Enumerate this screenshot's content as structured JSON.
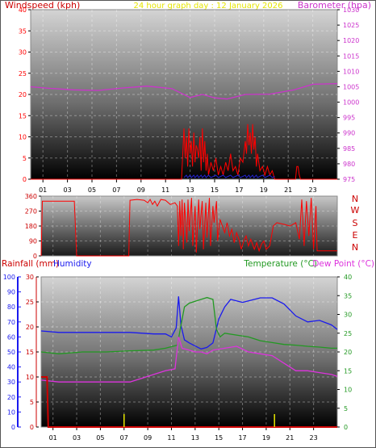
{
  "header": {
    "windspeed_label": "Windspeed (kph)",
    "subtitle": "24 hour graph day : 12 January 2026",
    "barometer_label": "Barometer (hpa)"
  },
  "colors": {
    "windspeed": "#ff0000",
    "gust_floor": "#2222cc",
    "barometer": "#cc33cc",
    "direction": "#ff0000",
    "humidity": "#1a1aee",
    "temperature": "#229922",
    "dew_point": "#dd33dd",
    "rainfall": "#cc0000",
    "subtitle": "#e6e600",
    "frame": "#000000"
  },
  "panel3_header": {
    "rainfall_label": "Rainfall (mm)",
    "humidity_label": "Humidity",
    "temperature_label": "Temperature (°C)",
    "dewpoint_label": "Dew Point (°C)"
  },
  "chart_data": [
    {
      "type": "line",
      "title": "24 hour graph day : 12 January 2026",
      "xlabel": "",
      "ylabel": "Windspeed (kph)",
      "y2label": "Barometer (hpa)",
      "xticks": [
        "01",
        "03",
        "05",
        "07",
        "09",
        "11",
        "13",
        "15",
        "17",
        "19",
        "21",
        "23"
      ],
      "xlim": [
        -0.5,
        24.5
      ],
      "ylim": [
        0,
        40
      ],
      "yticks": [
        0,
        5,
        10,
        15,
        20,
        25,
        30,
        35,
        40
      ],
      "y2lim": [
        975,
        1030
      ],
      "y2ticks": [
        975,
        980,
        985,
        990,
        995,
        1000,
        1005,
        1010,
        1015,
        1020,
        1025,
        1030
      ],
      "grid": true,
      "series": [
        {
          "name": "Barometer (hpa)",
          "axis": "right",
          "x": [
            -0.5,
            1,
            3,
            5,
            7,
            9,
            11,
            12.5,
            13.5,
            14.5,
            15.5,
            17,
            19,
            21,
            22.5,
            24.5
          ],
          "values": [
            1005.0,
            1004.5,
            1004.0,
            1003.8,
            1004.6,
            1005.2,
            1004.4,
            1001.5,
            1002.5,
            1001.4,
            1001.0,
            1002.5,
            1002.6,
            1004.0,
            1005.8,
            1006.0
          ]
        },
        {
          "name": "Windspeed (kph)",
          "axis": "left",
          "x": [
            -0.5,
            11.8,
            12.0,
            12.1,
            12.2,
            12.3,
            12.4,
            12.5,
            12.6,
            12.7,
            12.8,
            12.9,
            13.0,
            13.1,
            13.2,
            13.3,
            13.4,
            13.5,
            13.6,
            13.7,
            13.8,
            13.9,
            14.0,
            14.2,
            14.4,
            14.6,
            14.8,
            15.0,
            15.2,
            15.4,
            15.6,
            15.8,
            16.0,
            16.2,
            16.4,
            16.6,
            16.8,
            17.0,
            17.1,
            17.2,
            17.3,
            17.4,
            17.5,
            17.6,
            17.7,
            17.8,
            17.9,
            18.0,
            18.2,
            18.4,
            18.6,
            18.8,
            19.0,
            19.2,
            19.4,
            21.1,
            21.2,
            21.3,
            21.4,
            21.5,
            24.5
          ],
          "values": [
            0,
            0,
            12,
            5,
            10,
            3,
            12,
            6,
            9,
            3,
            11,
            4,
            8,
            7,
            5,
            10,
            2,
            12,
            4,
            9,
            2,
            6,
            1,
            4,
            2,
            5,
            1,
            3,
            1,
            4,
            2,
            6,
            2,
            3,
            1,
            5,
            4,
            9,
            6,
            13,
            8,
            11,
            6,
            13,
            7,
            10,
            3,
            6,
            2,
            3,
            1,
            3,
            1,
            2,
            0,
            0,
            3,
            3,
            1,
            0,
            0
          ]
        }
      ]
    },
    {
      "type": "line",
      "title": "",
      "ylabel": "",
      "xlim": [
        -0.5,
        24.5
      ],
      "ylim": [
        0,
        360
      ],
      "yticks": [
        0,
        90,
        180,
        270,
        360
      ],
      "direction_labels": [
        "N",
        "W",
        "S",
        "E",
        "N"
      ],
      "grid": true,
      "series": [
        {
          "name": "",
          "x": [
            -0.5,
            -0.4,
            2.3,
            2.5,
            6.9,
            7.0,
            7.6,
            8.2,
            8.5,
            8.7,
            8.9,
            9.1,
            9.3,
            9.6,
            10.0,
            10.4,
            10.8,
            11.0,
            11.1,
            11.2,
            11.3,
            11.4,
            11.5,
            11.6,
            11.8,
            11.9,
            12.0,
            12.2,
            12.3,
            12.5,
            12.6,
            12.8,
            12.9,
            13.1,
            13.2,
            13.4,
            13.5,
            13.7,
            13.8,
            14.0,
            14.1,
            14.3,
            14.4,
            14.6,
            14.8,
            15.0,
            15.2,
            15.4,
            15.6,
            15.8,
            16.0,
            16.2,
            16.4,
            16.6,
            16.8,
            17.0,
            17.2,
            17.5,
            17.7,
            17.9,
            18.1,
            18.3,
            18.5,
            18.8,
            19.1,
            19.4,
            20.0,
            20.5,
            21.0,
            21.3,
            21.5,
            21.7,
            21.9,
            22.1,
            22.3,
            22.5,
            22.7,
            22.8,
            24.5
          ],
          "values": [
            0,
            330,
            330,
            0,
            0,
            335,
            340,
            335,
            320,
            340,
            310,
            330,
            300,
            340,
            335,
            310,
            320,
            300,
            60,
            330,
            120,
            340,
            40,
            320,
            80,
            340,
            150,
            350,
            60,
            300,
            20,
            340,
            160,
            330,
            40,
            320,
            110,
            350,
            60,
            300,
            200,
            330,
            90,
            220,
            180,
            140,
            200,
            120,
            160,
            80,
            140,
            100,
            40,
            90,
            120,
            60,
            100,
            40,
            80,
            30,
            70,
            90,
            40,
            60,
            180,
            200,
            190,
            180,
            200,
            100,
            340,
            60,
            330,
            120,
            350,
            40,
            300,
            30,
            30
          ]
        }
      ]
    },
    {
      "type": "line",
      "title": "",
      "xticks": [
        "01",
        "03",
        "05",
        "07",
        "09",
        "11",
        "13",
        "15",
        "17",
        "19",
        "21",
        "23"
      ],
      "xlim": [
        -0.5,
        24.5
      ],
      "ylabel": "Rainfall (mm)",
      "ylim": [
        0,
        30
      ],
      "yticks": [
        0,
        5,
        10,
        15,
        20,
        25,
        30
      ],
      "humidity_ylim": [
        0,
        100
      ],
      "humidity_yticks": [
        0,
        10,
        20,
        30,
        40,
        50,
        60,
        70,
        80,
        90,
        100
      ],
      "y2label": "Temperature (°C)",
      "y2lim": [
        0,
        40
      ],
      "y2ticks": [
        0,
        5,
        10,
        15,
        20,
        25,
        30,
        35,
        40
      ],
      "grid": true,
      "series": [
        {
          "name": "Humidity",
          "axis": "humidity",
          "x": [
            -0.5,
            1,
            3,
            5,
            7,
            9,
            10,
            10.5,
            10.9,
            11.1,
            11.3,
            11.6,
            12,
            12.5,
            13,
            13.5,
            14,
            14.5,
            15,
            15.5,
            16,
            16.5,
            17,
            18,
            19,
            20,
            21,
            22,
            23,
            24,
            24.5
          ],
          "values": [
            64,
            63,
            63,
            63,
            63,
            62,
            62,
            60,
            66,
            87,
            68,
            58,
            56,
            54,
            52,
            53,
            56,
            72,
            80,
            85,
            84,
            83,
            84,
            86,
            86,
            82,
            74,
            70,
            71,
            68,
            65
          ]
        },
        {
          "name": "Temperature (°C)",
          "axis": "right",
          "x": [
            -0.5,
            1,
            3,
            5,
            7,
            9,
            10,
            11,
            11.3,
            11.6,
            12,
            12.5,
            13,
            13.5,
            14,
            14.3,
            14.6,
            15,
            16,
            17,
            18,
            19,
            20,
            21,
            22,
            23,
            24,
            24.5
          ],
          "values": [
            20,
            19.5,
            20,
            20,
            20.3,
            20.5,
            21,
            21.8,
            27,
            32,
            33,
            33.5,
            34,
            34.5,
            34,
            26,
            24,
            25,
            24.5,
            24,
            23,
            22.5,
            22,
            21.8,
            21.5,
            21.3,
            21,
            21
          ]
        },
        {
          "name": "Dew Point (°C)",
          "axis": "right",
          "x": [
            -0.5,
            1,
            3,
            5,
            7,
            8,
            9,
            10,
            10.8,
            11.1,
            11.4,
            12,
            12.5,
            13,
            13.5,
            14,
            15,
            16,
            17,
            18,
            19,
            20,
            21,
            22,
            23,
            24,
            24.5
          ],
          "values": [
            12.5,
            12,
            12,
            12,
            12,
            13,
            14,
            15,
            15.5,
            24,
            21,
            20.5,
            20,
            20,
            19.5,
            20.5,
            21,
            21.5,
            20,
            19.5,
            19,
            17,
            15,
            15,
            14.5,
            14,
            13.5
          ]
        },
        {
          "name": "Rainfall (mm)",
          "axis": "left",
          "x": [
            -0.5,
            -0.2,
            0.0,
            0.1,
            24.5
          ],
          "values": [
            10,
            10,
            10,
            0,
            0
          ]
        }
      ],
      "rain_marks_x": [
        6.5,
        19.2
      ]
    }
  ]
}
